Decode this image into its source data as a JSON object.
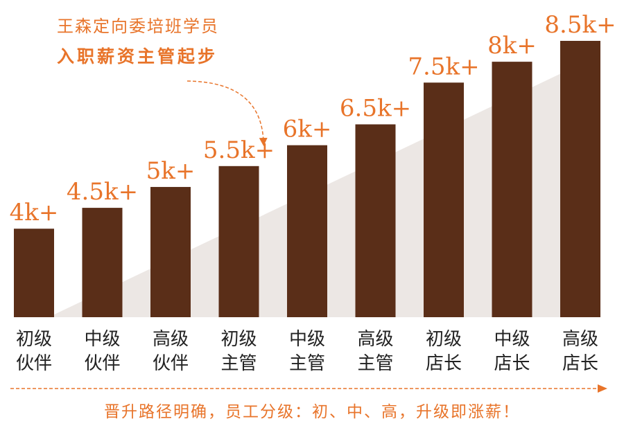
{
  "callout": {
    "line1": "王森定向委培班学员",
    "line2": "入职薪资主管起步"
  },
  "footer": {
    "text": "晋升路径明确，员工分级：初、中、高，升级即涨薪！"
  },
  "colors": {
    "bar": "#5a2e18",
    "accent": "#e8742a",
    "label": "#222222",
    "wedge": "#ece7e4"
  },
  "chart_data": {
    "type": "bar",
    "title": "",
    "xlabel": "",
    "ylabel": "",
    "grid": false,
    "ylim": [
      0,
      9
    ],
    "categories": [
      [
        "初级",
        "伙伴"
      ],
      [
        "中级",
        "伙伴"
      ],
      [
        "高级",
        "伙伴"
      ],
      [
        "初级",
        "主管"
      ],
      [
        "中级",
        "主管"
      ],
      [
        "高级",
        "主管"
      ],
      [
        "初级",
        "店长"
      ],
      [
        "中级",
        "店长"
      ],
      [
        "高级",
        "店长"
      ]
    ],
    "values": [
      4,
      4.5,
      5,
      5.5,
      6,
      6.5,
      7.5,
      8,
      8.5
    ],
    "value_labels": [
      "4k+",
      "4.5k+",
      "5k+",
      "5.5k+",
      "6k+",
      "6.5k+",
      "7.5k+",
      "8k+",
      "8.5k+"
    ]
  }
}
